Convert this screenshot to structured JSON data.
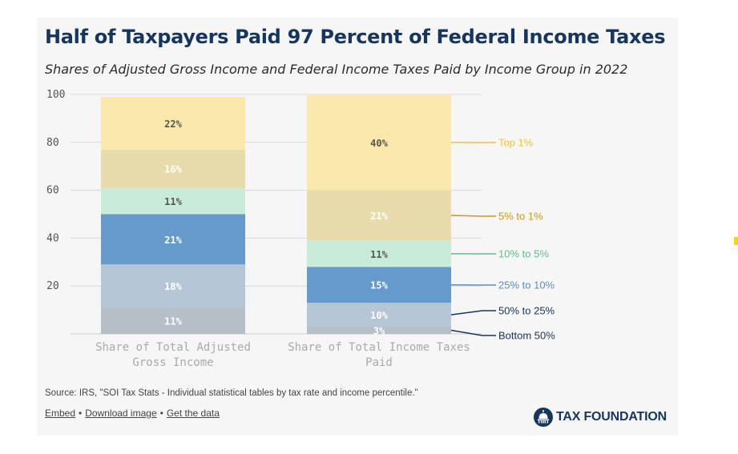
{
  "header": {
    "title": "Half of Taxpayers Paid 97 Percent of Federal Income Taxes",
    "subtitle": "Shares of Adjusted Gross Income and Federal Income Taxes Paid by Income Group in 2022"
  },
  "footer": {
    "source": "Source: IRS, \"SOI Tax Stats - Individual statistical tables by tax rate and income percentile.\"",
    "links": {
      "embed": "Embed",
      "download": "Download image",
      "data": "Get the data"
    },
    "logo_text": "TAX FOUNDATION"
  },
  "chart_data": {
    "type": "stacked-bar",
    "title": "Half of Taxpayers Paid 97 Percent of Federal Income Taxes",
    "subtitle": "Shares of Adjusted Gross Income and Federal Income Taxes Paid by Income Group in 2022",
    "ylim": [
      0,
      100
    ],
    "yticks": [
      20,
      40,
      60,
      80,
      100
    ],
    "grid": true,
    "categories": [
      {
        "lines": [
          "Share of Total Adjusted",
          "Gross Income"
        ]
      },
      {
        "lines": [
          "Share of Total Income Taxes",
          "Paid"
        ]
      }
    ],
    "series": [
      {
        "name": "Bottom 50%",
        "color": "#b6bfc8",
        "label_color": "#ffffff",
        "legend_color": "#17365d",
        "values": [
          11,
          3
        ],
        "labels": [
          "11%",
          "3%"
        ]
      },
      {
        "name": "50% to 25%",
        "color": "#b7c6d6",
        "label_color": "#ffffff",
        "legend_color": "#17365d",
        "values": [
          18,
          10
        ],
        "labels": [
          "18%",
          "10%"
        ]
      },
      {
        "name": "25% to 10%",
        "color": "#6699cc",
        "label_color": "#ffffff",
        "legend_color": "#5d8ebf",
        "values": [
          21,
          15
        ],
        "labels": [
          "21%",
          "15%"
        ]
      },
      {
        "name": "10% to 5%",
        "color": "#c8ecd9",
        "label_color": "#555555",
        "legend_color": "#5cc08d",
        "values": [
          11,
          11
        ],
        "labels": [
          "11%",
          "11%"
        ]
      },
      {
        "name": "5% to 1%",
        "color": "#e8dcad",
        "label_color": "#ffffff",
        "legend_color": "#c79a1e",
        "values": [
          16,
          21
        ],
        "labels": [
          "16%",
          "21%"
        ]
      },
      {
        "name": "Top 1%",
        "color": "#fae8ad",
        "label_color": "#555555",
        "legend_color": "#f2c432",
        "values": [
          22,
          40
        ],
        "labels": [
          "22%",
          "40%"
        ]
      }
    ],
    "legend_position": "right"
  }
}
